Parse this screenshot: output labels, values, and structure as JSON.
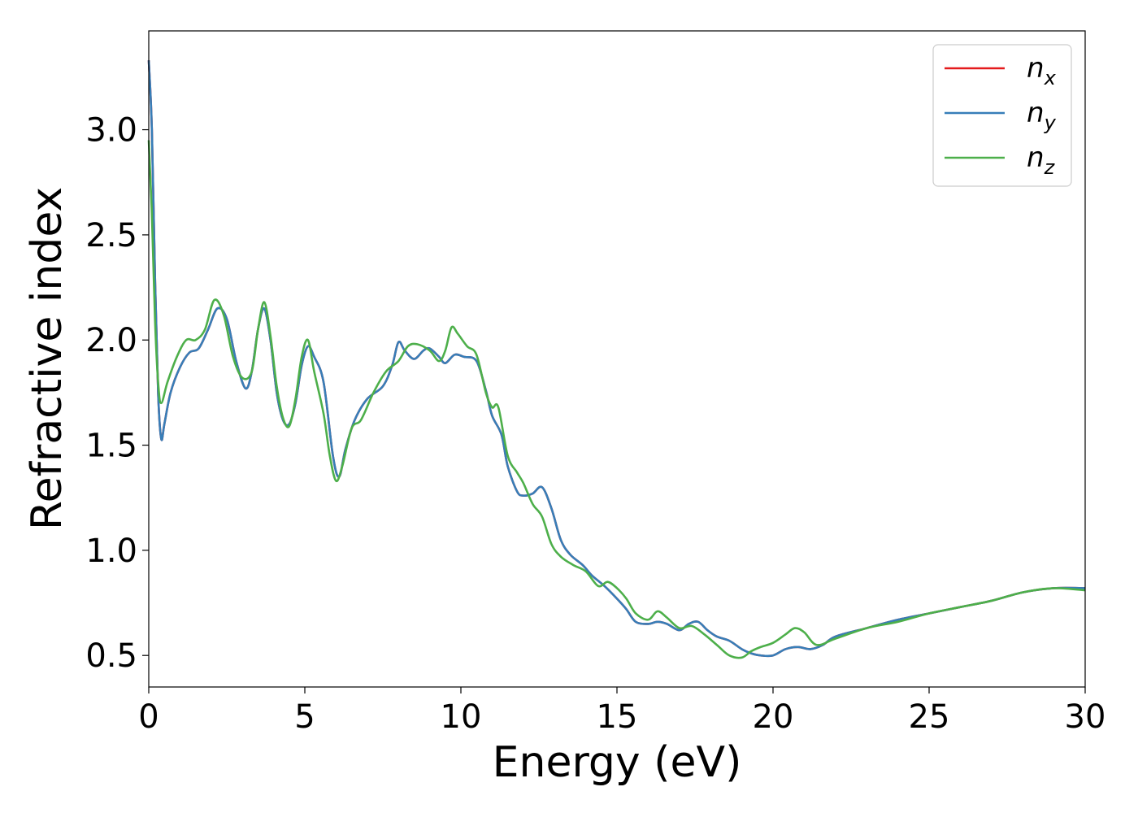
{
  "chart_data": {
    "type": "line",
    "xlabel": "Energy (eV)",
    "ylabel": "Refractive index",
    "xlim": [
      0,
      30
    ],
    "ylim": [
      0.35,
      3.47
    ],
    "x_ticks": [
      0,
      5,
      10,
      15,
      20,
      25,
      30
    ],
    "x_tick_labels": [
      "0",
      "5",
      "10",
      "15",
      "20",
      "25",
      "30"
    ],
    "y_ticks": [
      0.5,
      1.0,
      1.5,
      2.0,
      2.5,
      3.0
    ],
    "y_tick_labels": [
      "0.5",
      "1.0",
      "1.5",
      "2.0",
      "2.5",
      "3.0"
    ],
    "grid": false,
    "legend_position": "top-right",
    "series": [
      {
        "name": "n",
        "subscript": "x",
        "color": "#e41a1c",
        "points": [
          [
            0,
            3.33
          ],
          [
            0.1,
            3.0
          ],
          [
            0.2,
            2.3
          ],
          [
            0.3,
            1.75
          ],
          [
            0.4,
            1.53
          ],
          [
            0.5,
            1.6
          ],
          [
            0.7,
            1.75
          ],
          [
            1.0,
            1.87
          ],
          [
            1.3,
            1.94
          ],
          [
            1.6,
            1.96
          ],
          [
            1.9,
            2.05
          ],
          [
            2.2,
            2.15
          ],
          [
            2.5,
            2.1
          ],
          [
            2.8,
            1.9
          ],
          [
            3.1,
            1.77
          ],
          [
            3.3,
            1.85
          ],
          [
            3.5,
            2.05
          ],
          [
            3.7,
            2.15
          ],
          [
            3.9,
            2.0
          ],
          [
            4.1,
            1.75
          ],
          [
            4.3,
            1.62
          ],
          [
            4.5,
            1.6
          ],
          [
            4.7,
            1.7
          ],
          [
            4.9,
            1.88
          ],
          [
            5.1,
            1.97
          ],
          [
            5.3,
            1.92
          ],
          [
            5.6,
            1.8
          ],
          [
            5.9,
            1.45
          ],
          [
            6.1,
            1.35
          ],
          [
            6.3,
            1.48
          ],
          [
            6.6,
            1.62
          ],
          [
            7.0,
            1.72
          ],
          [
            7.5,
            1.78
          ],
          [
            7.8,
            1.88
          ],
          [
            8.0,
            1.99
          ],
          [
            8.2,
            1.95
          ],
          [
            8.5,
            1.91
          ],
          [
            8.8,
            1.95
          ],
          [
            9.0,
            1.96
          ],
          [
            9.3,
            1.92
          ],
          [
            9.5,
            1.89
          ],
          [
            9.8,
            1.93
          ],
          [
            10.1,
            1.92
          ],
          [
            10.5,
            1.9
          ],
          [
            10.8,
            1.76
          ],
          [
            11.0,
            1.64
          ],
          [
            11.3,
            1.55
          ],
          [
            11.5,
            1.4
          ],
          [
            11.8,
            1.28
          ],
          [
            12.0,
            1.26
          ],
          [
            12.3,
            1.27
          ],
          [
            12.6,
            1.3
          ],
          [
            12.9,
            1.2
          ],
          [
            13.2,
            1.05
          ],
          [
            13.5,
            0.98
          ],
          [
            13.9,
            0.93
          ],
          [
            14.2,
            0.88
          ],
          [
            14.6,
            0.83
          ],
          [
            15.0,
            0.77
          ],
          [
            15.3,
            0.72
          ],
          [
            15.6,
            0.66
          ],
          [
            16.0,
            0.65
          ],
          [
            16.3,
            0.66
          ],
          [
            16.6,
            0.65
          ],
          [
            17.0,
            0.62
          ],
          [
            17.3,
            0.65
          ],
          [
            17.6,
            0.66
          ],
          [
            17.9,
            0.62
          ],
          [
            18.2,
            0.59
          ],
          [
            18.6,
            0.57
          ],
          [
            19.0,
            0.53
          ],
          [
            19.3,
            0.51
          ],
          [
            19.6,
            0.5
          ],
          [
            20.0,
            0.5
          ],
          [
            20.4,
            0.53
          ],
          [
            20.8,
            0.54
          ],
          [
            21.2,
            0.53
          ],
          [
            21.6,
            0.55
          ],
          [
            22.0,
            0.59
          ],
          [
            23.0,
            0.63
          ],
          [
            24.0,
            0.67
          ],
          [
            25.0,
            0.7
          ],
          [
            26.0,
            0.73
          ],
          [
            27.0,
            0.76
          ],
          [
            28.0,
            0.8
          ],
          [
            29.0,
            0.82
          ],
          [
            30.0,
            0.82
          ]
        ]
      },
      {
        "name": "n",
        "subscript": "y",
        "color": "#377eb8",
        "points": [
          [
            0,
            3.33
          ],
          [
            0.1,
            3.0
          ],
          [
            0.2,
            2.3
          ],
          [
            0.3,
            1.75
          ],
          [
            0.4,
            1.53
          ],
          [
            0.5,
            1.6
          ],
          [
            0.7,
            1.75
          ],
          [
            1.0,
            1.87
          ],
          [
            1.3,
            1.94
          ],
          [
            1.6,
            1.96
          ],
          [
            1.9,
            2.05
          ],
          [
            2.2,
            2.15
          ],
          [
            2.5,
            2.1
          ],
          [
            2.8,
            1.9
          ],
          [
            3.1,
            1.77
          ],
          [
            3.3,
            1.85
          ],
          [
            3.5,
            2.05
          ],
          [
            3.7,
            2.15
          ],
          [
            3.9,
            2.0
          ],
          [
            4.1,
            1.75
          ],
          [
            4.3,
            1.62
          ],
          [
            4.5,
            1.6
          ],
          [
            4.7,
            1.7
          ],
          [
            4.9,
            1.88
          ],
          [
            5.1,
            1.97
          ],
          [
            5.3,
            1.92
          ],
          [
            5.6,
            1.8
          ],
          [
            5.9,
            1.45
          ],
          [
            6.1,
            1.35
          ],
          [
            6.3,
            1.48
          ],
          [
            6.6,
            1.62
          ],
          [
            7.0,
            1.72
          ],
          [
            7.5,
            1.78
          ],
          [
            7.8,
            1.88
          ],
          [
            8.0,
            1.99
          ],
          [
            8.2,
            1.95
          ],
          [
            8.5,
            1.91
          ],
          [
            8.8,
            1.95
          ],
          [
            9.0,
            1.96
          ],
          [
            9.3,
            1.92
          ],
          [
            9.5,
            1.89
          ],
          [
            9.8,
            1.93
          ],
          [
            10.1,
            1.92
          ],
          [
            10.5,
            1.9
          ],
          [
            10.8,
            1.76
          ],
          [
            11.0,
            1.64
          ],
          [
            11.3,
            1.55
          ],
          [
            11.5,
            1.4
          ],
          [
            11.8,
            1.28
          ],
          [
            12.0,
            1.26
          ],
          [
            12.3,
            1.27
          ],
          [
            12.6,
            1.3
          ],
          [
            12.9,
            1.2
          ],
          [
            13.2,
            1.05
          ],
          [
            13.5,
            0.98
          ],
          [
            13.9,
            0.93
          ],
          [
            14.2,
            0.88
          ],
          [
            14.6,
            0.83
          ],
          [
            15.0,
            0.77
          ],
          [
            15.3,
            0.72
          ],
          [
            15.6,
            0.66
          ],
          [
            16.0,
            0.65
          ],
          [
            16.3,
            0.66
          ],
          [
            16.6,
            0.65
          ],
          [
            17.0,
            0.62
          ],
          [
            17.3,
            0.65
          ],
          [
            17.6,
            0.66
          ],
          [
            17.9,
            0.62
          ],
          [
            18.2,
            0.59
          ],
          [
            18.6,
            0.57
          ],
          [
            19.0,
            0.53
          ],
          [
            19.3,
            0.51
          ],
          [
            19.6,
            0.5
          ],
          [
            20.0,
            0.5
          ],
          [
            20.4,
            0.53
          ],
          [
            20.8,
            0.54
          ],
          [
            21.2,
            0.53
          ],
          [
            21.6,
            0.55
          ],
          [
            22.0,
            0.59
          ],
          [
            23.0,
            0.63
          ],
          [
            24.0,
            0.67
          ],
          [
            25.0,
            0.7
          ],
          [
            26.0,
            0.73
          ],
          [
            27.0,
            0.76
          ],
          [
            28.0,
            0.8
          ],
          [
            29.0,
            0.82
          ],
          [
            30.0,
            0.82
          ]
        ]
      },
      {
        "name": "n",
        "subscript": "z",
        "color": "#4daf4a",
        "points": [
          [
            0,
            2.95
          ],
          [
            0.1,
            2.6
          ],
          [
            0.2,
            2.1
          ],
          [
            0.3,
            1.8
          ],
          [
            0.4,
            1.7
          ],
          [
            0.6,
            1.8
          ],
          [
            0.9,
            1.92
          ],
          [
            1.2,
            2.0
          ],
          [
            1.5,
            2.0
          ],
          [
            1.8,
            2.05
          ],
          [
            2.1,
            2.19
          ],
          [
            2.4,
            2.12
          ],
          [
            2.7,
            1.92
          ],
          [
            3.0,
            1.82
          ],
          [
            3.3,
            1.85
          ],
          [
            3.5,
            2.05
          ],
          [
            3.7,
            2.18
          ],
          [
            3.9,
            2.02
          ],
          [
            4.1,
            1.78
          ],
          [
            4.3,
            1.63
          ],
          [
            4.5,
            1.59
          ],
          [
            4.7,
            1.72
          ],
          [
            4.9,
            1.92
          ],
          [
            5.1,
            2.0
          ],
          [
            5.3,
            1.85
          ],
          [
            5.6,
            1.65
          ],
          [
            5.8,
            1.45
          ],
          [
            6.0,
            1.33
          ],
          [
            6.2,
            1.4
          ],
          [
            6.5,
            1.58
          ],
          [
            6.8,
            1.62
          ],
          [
            7.2,
            1.75
          ],
          [
            7.6,
            1.85
          ],
          [
            8.0,
            1.9
          ],
          [
            8.3,
            1.97
          ],
          [
            8.6,
            1.98
          ],
          [
            9.0,
            1.95
          ],
          [
            9.3,
            1.9
          ],
          [
            9.5,
            1.95
          ],
          [
            9.7,
            2.06
          ],
          [
            9.9,
            2.03
          ],
          [
            10.2,
            1.97
          ],
          [
            10.5,
            1.93
          ],
          [
            10.8,
            1.75
          ],
          [
            11.0,
            1.68
          ],
          [
            11.2,
            1.68
          ],
          [
            11.5,
            1.45
          ],
          [
            11.8,
            1.37
          ],
          [
            12.0,
            1.32
          ],
          [
            12.3,
            1.22
          ],
          [
            12.6,
            1.16
          ],
          [
            12.9,
            1.03
          ],
          [
            13.2,
            0.97
          ],
          [
            13.6,
            0.93
          ],
          [
            14.0,
            0.9
          ],
          [
            14.4,
            0.83
          ],
          [
            14.7,
            0.85
          ],
          [
            15.0,
            0.82
          ],
          [
            15.3,
            0.77
          ],
          [
            15.6,
            0.7
          ],
          [
            16.0,
            0.67
          ],
          [
            16.3,
            0.71
          ],
          [
            16.6,
            0.68
          ],
          [
            17.0,
            0.63
          ],
          [
            17.4,
            0.64
          ],
          [
            17.8,
            0.6
          ],
          [
            18.2,
            0.55
          ],
          [
            18.6,
            0.5
          ],
          [
            19.0,
            0.49
          ],
          [
            19.3,
            0.52
          ],
          [
            19.6,
            0.54
          ],
          [
            20.0,
            0.56
          ],
          [
            20.4,
            0.6
          ],
          [
            20.7,
            0.63
          ],
          [
            21.0,
            0.61
          ],
          [
            21.4,
            0.55
          ],
          [
            22.0,
            0.58
          ],
          [
            23.0,
            0.63
          ],
          [
            24.0,
            0.66
          ],
          [
            25.0,
            0.7
          ],
          [
            26.0,
            0.73
          ],
          [
            27.0,
            0.76
          ],
          [
            28.0,
            0.8
          ],
          [
            29.0,
            0.82
          ],
          [
            30.0,
            0.81
          ]
        ]
      }
    ]
  }
}
